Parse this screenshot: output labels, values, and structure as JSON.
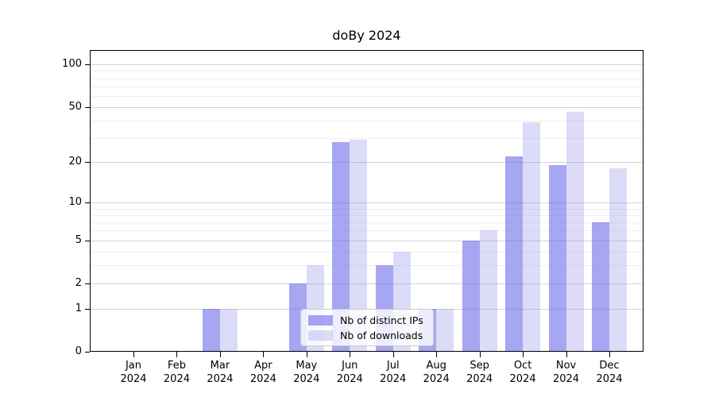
{
  "chart_data": {
    "type": "bar",
    "title": "doBy 2024",
    "categories": [
      "Jan 2024",
      "Feb 2024",
      "Mar 2024",
      "Apr 2024",
      "May 2024",
      "Jun 2024",
      "Jul 2024",
      "Aug 2024",
      "Sep 2024",
      "Oct 2024",
      "Nov 2024",
      "Dec 2024"
    ],
    "series": [
      {
        "name": "Nb of distinct IPs",
        "color": "#5d5de7",
        "alpha": 0.55,
        "values": [
          0,
          0,
          1,
          0,
          2,
          28,
          3,
          1,
          5,
          22,
          19,
          7
        ]
      },
      {
        "name": "Nb of downloads",
        "color": "#7373e3",
        "alpha": 0.25,
        "values": [
          0,
          0,
          1,
          0,
          3,
          29,
          4,
          1,
          6,
          39,
          46,
          18
        ]
      }
    ],
    "xlabel": "",
    "ylabel": "",
    "yscale": "log1p",
    "ylim": [
      0,
      127
    ],
    "y_major_ticks": [
      0,
      1,
      2,
      5,
      10,
      20,
      50,
      100
    ],
    "y_minor_ticks": [
      3,
      4,
      6,
      7,
      8,
      9,
      30,
      40,
      60,
      70,
      80,
      90
    ],
    "grid": "horizontal",
    "legend_position": "lower-center-inside"
  },
  "colors": {
    "background": "#ffffff",
    "major_grid": "#d4d4d4",
    "minor_grid": "#efefef",
    "axis": "#000000",
    "legend_border": "#cccccc"
  }
}
